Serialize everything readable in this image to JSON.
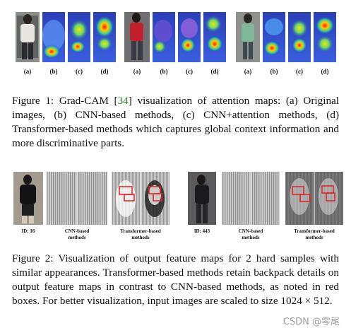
{
  "figure1": {
    "labels": [
      "(a)",
      "(b)",
      "(c)",
      "(d)",
      "(a)",
      "(b)",
      "(c)",
      "(d)",
      "(a)",
      "(b)",
      "(c)",
      "(d)"
    ],
    "caption": {
      "prefix": "Figure 1: Grad-CAM [",
      "cite": "34",
      "suffix": "] visualization of attention maps: (a) Original images, (b) CNN-based methods, (c) CNN+attention methods, (d) Transformer-based methods which captures global context information and more discriminative parts."
    }
  },
  "figure2": {
    "left": {
      "id_label": "ID: 16",
      "cnn_label": "CNN-based methods",
      "transformer_label": "Transformer-based methods"
    },
    "right": {
      "id_label": "ID: 443",
      "cnn_label": "CNN-based methods",
      "transformer_label": "Transformer-based methods"
    },
    "caption": "Figure 2: Visualization of output feature maps for 2 hard samples with similar appearances. Transformer-based methods retain backpack details on output feature maps in contrast to CNN-based methods, as noted in red boxes. For better visualization, input images are scaled to size 1024 × 512."
  },
  "watermark": "CSDN @零尾"
}
